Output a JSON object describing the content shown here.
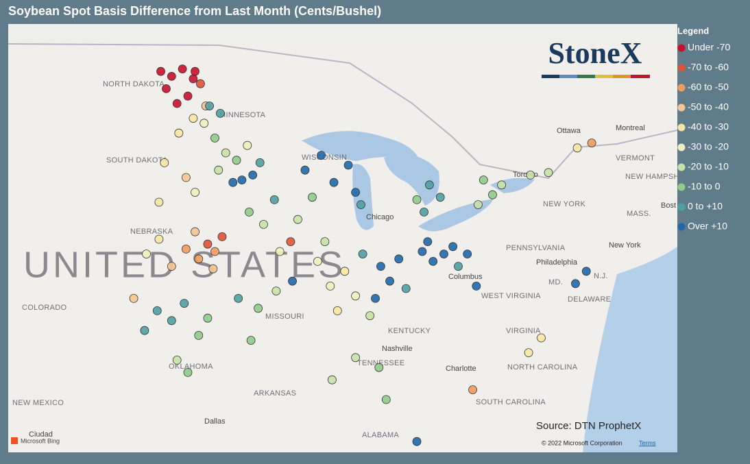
{
  "map_data": {
    "title": "Soybean Spot Basis Difference from Last Month (Cents/Bushel)",
    "legend_title": "Legend",
    "legend": [
      {
        "label": "Under -70",
        "color": "#c8102e"
      },
      {
        "label": "-70 to -60",
        "color": "#de5338"
      },
      {
        "label": "-60 to -50",
        "color": "#ef9a5e"
      },
      {
        "label": "-50 to -40",
        "color": "#f6c495"
      },
      {
        "label": "-40 to -30",
        "color": "#f8e5a3"
      },
      {
        "label": "-30 to -20",
        "color": "#eef1bb"
      },
      {
        "label": "-20 to -10",
        "color": "#c6e1a6"
      },
      {
        "label": "-10 to 0",
        "color": "#8fcb8b"
      },
      {
        "label": "0 to +10",
        "color": "#4f9ea3"
      },
      {
        "label": "Over +10",
        "color": "#1f68ab"
      }
    ],
    "country_label": "UNITED STATES",
    "place_labels": [
      "NORTH DAKOTA",
      "MINNESOTA",
      "SOUTH DAKOTA",
      "NEBRASKA",
      "COLORADO",
      "MISSOURI",
      "KENTUCKY",
      "TENNESSEE",
      "ARKANSAS",
      "OKLAHOMA",
      "NEW MEXICO",
      "ALABAMA",
      "WEST VIRGINIA",
      "VIRGINIA",
      "NORTH CAROLINA",
      "SOUTH CAROLINA",
      "PENNSYLVANIA",
      "NEW YORK",
      "VERMONT",
      "NEW HAMPSHIRE",
      "MASS.",
      "DELAWARE",
      "MD.",
      "N.J.",
      "WISCONSIN",
      "Chicago",
      "Columbus",
      "Nashville",
      "Ottawa",
      "Montreal",
      "Toronto",
      "Philadelphia",
      "New York",
      "Bost",
      "Charlotte",
      "Dallas",
      "Ciudad"
    ],
    "logo": "StoneX",
    "source": "Source: DTN ProphetX",
    "copyright": "© 2022 Microsoft Corporation",
    "terms": "Terms",
    "bing": "Microsoft Bing",
    "points": [
      [
        -98.8,
        48.3,
        0
      ],
      [
        -98.2,
        48.1,
        0
      ],
      [
        -97.6,
        48.4,
        0
      ],
      [
        -97.0,
        48.0,
        0
      ],
      [
        -98.5,
        47.6,
        0
      ],
      [
        -97.3,
        47.3,
        0
      ],
      [
        -96.9,
        48.3,
        0
      ],
      [
        -97.9,
        47.0,
        0
      ],
      [
        -96.6,
        47.8,
        1
      ],
      [
        -96.3,
        46.9,
        3
      ],
      [
        -97.0,
        46.4,
        4
      ],
      [
        -96.4,
        46.2,
        5
      ],
      [
        -97.8,
        45.8,
        4
      ],
      [
        -98.6,
        44.6,
        4
      ],
      [
        -97.4,
        44.0,
        3
      ],
      [
        -96.9,
        43.4,
        5
      ],
      [
        -98.9,
        43.0,
        4
      ],
      [
        -95.8,
        45.6,
        7
      ],
      [
        -95.2,
        45.0,
        6
      ],
      [
        -94.6,
        44.7,
        7
      ],
      [
        -94.0,
        45.3,
        5
      ],
      [
        -95.6,
        44.3,
        6
      ],
      [
        -96.1,
        46.9,
        8
      ],
      [
        -95.5,
        46.6,
        8
      ],
      [
        -94.8,
        43.8,
        9
      ],
      [
        -94.3,
        43.9,
        9
      ],
      [
        -93.7,
        44.1,
        9
      ],
      [
        -93.3,
        44.6,
        8
      ],
      [
        -96.2,
        41.3,
        1
      ],
      [
        -95.8,
        41.0,
        2
      ],
      [
        -95.4,
        41.6,
        1
      ],
      [
        -96.7,
        40.7,
        2
      ],
      [
        -95.9,
        40.3,
        3
      ],
      [
        -97.4,
        41.1,
        2
      ],
      [
        -96.9,
        41.8,
        3
      ],
      [
        -98.2,
        40.4,
        3
      ],
      [
        -98.9,
        41.5,
        4
      ],
      [
        -99.6,
        40.9,
        5
      ],
      [
        -93.9,
        42.6,
        7
      ],
      [
        -93.1,
        42.1,
        6
      ],
      [
        -92.5,
        43.1,
        8
      ],
      [
        -91.6,
        41.4,
        1
      ],
      [
        -91.2,
        42.3,
        6
      ],
      [
        -92.2,
        41.0,
        5
      ],
      [
        -90.8,
        44.3,
        9
      ],
      [
        -89.9,
        44.9,
        9
      ],
      [
        -89.2,
        43.8,
        9
      ],
      [
        -88.4,
        44.5,
        9
      ],
      [
        -88.0,
        43.4,
        9
      ],
      [
        -87.7,
        42.9,
        8
      ],
      [
        -90.4,
        43.2,
        7
      ],
      [
        -88.6,
        40.2,
        4
      ],
      [
        -89.4,
        39.6,
        5
      ],
      [
        -88.0,
        39.2,
        5
      ],
      [
        -89.0,
        38.6,
        4
      ],
      [
        -87.6,
        40.9,
        8
      ],
      [
        -90.1,
        40.6,
        5
      ],
      [
        -89.7,
        41.4,
        6
      ],
      [
        -86.6,
        40.4,
        9
      ],
      [
        -86.1,
        39.8,
        9
      ],
      [
        -85.6,
        40.7,
        9
      ],
      [
        -86.9,
        39.1,
        9
      ],
      [
        -85.2,
        39.5,
        8
      ],
      [
        -87.2,
        38.4,
        6
      ],
      [
        -84.3,
        41.0,
        9
      ],
      [
        -83.7,
        40.6,
        9
      ],
      [
        -84.0,
        41.4,
        9
      ],
      [
        -83.1,
        40.9,
        9
      ],
      [
        -82.6,
        41.2,
        9
      ],
      [
        -82.3,
        40.4,
        8
      ],
      [
        -81.8,
        40.9,
        9
      ],
      [
        -81.3,
        39.6,
        9
      ],
      [
        -84.2,
        42.6,
        8
      ],
      [
        -83.3,
        43.2,
        8
      ],
      [
        -83.9,
        43.7,
        8
      ],
      [
        -84.6,
        43.1,
        7
      ],
      [
        -80.4,
        43.3,
        7
      ],
      [
        -81.2,
        42.9,
        6
      ],
      [
        -79.9,
        43.7,
        6
      ],
      [
        -80.9,
        43.9,
        7
      ],
      [
        -78.3,
        44.1,
        6
      ],
      [
        -77.3,
        44.2,
        6
      ],
      [
        -75.7,
        45.2,
        4
      ],
      [
        -74.9,
        45.4,
        2
      ],
      [
        -99.0,
        38.6,
        8
      ],
      [
        -98.2,
        38.2,
        8
      ],
      [
        -97.5,
        38.9,
        8
      ],
      [
        -99.7,
        37.8,
        8
      ],
      [
        -96.7,
        37.6,
        7
      ],
      [
        -97.9,
        36.6,
        6
      ],
      [
        -97.3,
        36.1,
        7
      ],
      [
        -96.2,
        38.3,
        7
      ],
      [
        -100.3,
        39.1,
        3
      ],
      [
        -94.5,
        39.1,
        8
      ],
      [
        -93.4,
        38.7,
        7
      ],
      [
        -92.4,
        39.4,
        6
      ],
      [
        -91.5,
        39.8,
        9
      ],
      [
        -93.8,
        37.4,
        7
      ],
      [
        -88.0,
        36.7,
        6
      ],
      [
        -86.7,
        36.3,
        7
      ],
      [
        -89.3,
        35.8,
        6
      ],
      [
        -86.3,
        35.0,
        7
      ],
      [
        -84.6,
        33.3,
        9
      ],
      [
        -78.4,
        36.9,
        4
      ],
      [
        -77.7,
        37.5,
        4
      ],
      [
        -75.8,
        39.7,
        9
      ],
      [
        -81.5,
        35.4,
        2
      ],
      [
        -75.2,
        40.2,
        9
      ]
    ]
  }
}
